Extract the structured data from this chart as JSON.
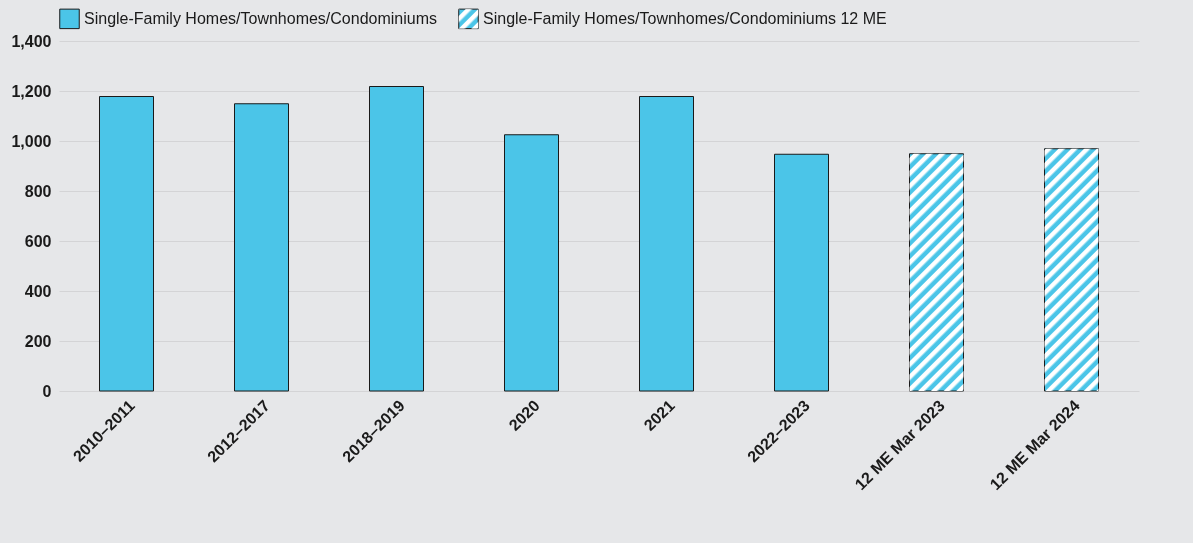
{
  "chart_data": {
    "type": "bar",
    "categories": [
      "2010–2011",
      "2012–2017",
      "2018–2019",
      "2020",
      "2021",
      "2022–2023",
      "12 ME Mar 2023",
      "12 ME Mar 2024"
    ],
    "series": [
      {
        "name": "Single-Family Homes/Townhomes/Condominiums",
        "color": "#4bc5e8",
        "values": [
          1178,
          1149,
          1218,
          1025,
          1178,
          947,
          null,
          null
        ]
      },
      {
        "name": "Single-Family Homes/Townhomes/Condominiums 12 ME",
        "color": "#4bc5e8",
        "values": [
          null,
          null,
          null,
          null,
          null,
          null,
          949,
          969
        ]
      }
    ],
    "ylim": [
      0,
      1400
    ],
    "yticks": [
      0,
      200,
      400,
      600,
      800,
      {
        "value": 1000,
        "label": "1,000"
      },
      {
        "value": 1200,
        "label": "1,200"
      },
      {
        "value": 1400,
        "label": "1,400"
      }
    ],
    "grid": "y",
    "legend": "top"
  }
}
